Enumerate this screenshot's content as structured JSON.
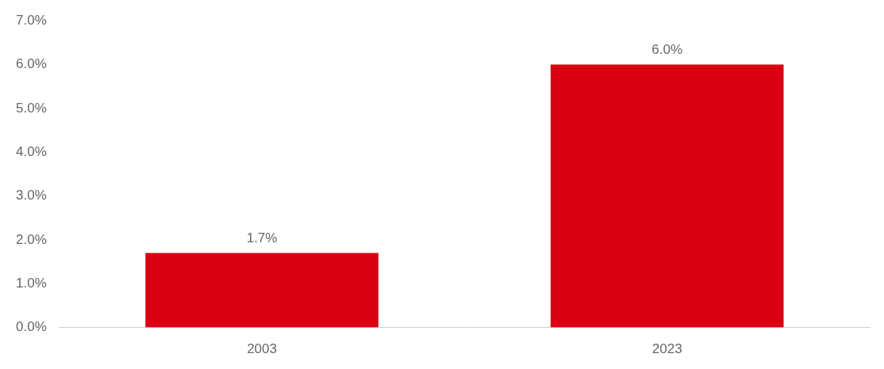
{
  "chart_data": {
    "type": "bar",
    "categories": [
      "2003",
      "2023"
    ],
    "values": [
      1.7,
      6.0
    ],
    "value_labels": [
      "1.7%",
      "6.0%"
    ],
    "color": "#d90012",
    "ylim": [
      0,
      7
    ],
    "yticks": [
      {
        "value": 0,
        "label": "0.0%"
      },
      {
        "value": 1,
        "label": "1.0%"
      },
      {
        "value": 2,
        "label": "2.0%"
      },
      {
        "value": 3,
        "label": "3.0%"
      },
      {
        "value": 4,
        "label": "4.0%"
      },
      {
        "value": 5,
        "label": "5.0%"
      },
      {
        "value": 6,
        "label": "6.0%"
      },
      {
        "value": 7,
        "label": "7.0%"
      }
    ],
    "grid": false,
    "data_labels": true
  }
}
